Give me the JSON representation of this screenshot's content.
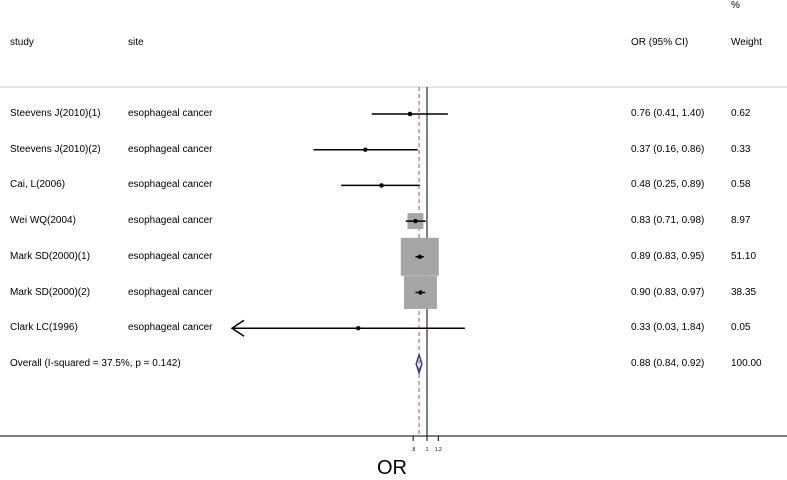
{
  "headers": {
    "study": "study",
    "site": "site",
    "or_ci": "OR (95% CI)",
    "weight_pct": "%",
    "weight": "Weight"
  },
  "chart_data": {
    "type": "forest",
    "xlabel": "OR",
    "x_ticks": [
      ".8",
      "1",
      "1.2"
    ],
    "null_value": 1,
    "overall_value": 0.88,
    "studies": [
      {
        "study": "Steevens J(2010)(1)",
        "site": "esophageal cancer",
        "or": 0.76,
        "lo": 0.41,
        "hi": 1.4,
        "ci_text": "0.76 (0.41, 1.40)",
        "weight": "0.62",
        "arrow_left": false
      },
      {
        "study": "Steevens J(2010)(2)",
        "site": "esophageal cancer",
        "or": 0.37,
        "lo": 0.16,
        "hi": 0.86,
        "ci_text": "0.37 (0.16, 0.86)",
        "weight": "0.33",
        "arrow_left": false
      },
      {
        "study": "Cai, L(2006)",
        "site": "esophageal cancer",
        "or": 0.48,
        "lo": 0.25,
        "hi": 0.89,
        "ci_text": "0.48 (0.25, 0.89)",
        "weight": "0.58",
        "arrow_left": false
      },
      {
        "study": "Wei WQ(2004)",
        "site": "esophageal cancer",
        "or": 0.83,
        "lo": 0.71,
        "hi": 0.98,
        "ci_text": "0.83 (0.71, 0.98)",
        "weight": "8.97",
        "arrow_left": false
      },
      {
        "study": "Mark SD(2000)(1)",
        "site": "esophageal cancer",
        "or": 0.89,
        "lo": 0.83,
        "hi": 0.95,
        "ci_text": "0.89 (0.83, 0.95)",
        "weight": "51.10",
        "arrow_left": false
      },
      {
        "study": "Mark SD(2000)(2)",
        "site": "esophageal cancer",
        "or": 0.9,
        "lo": 0.83,
        "hi": 0.97,
        "ci_text": "0.90 (0.83, 0.97)",
        "weight": "38.35",
        "arrow_left": false
      },
      {
        "study": "Clark LC(1996)",
        "site": "esophageal cancer",
        "or": 0.33,
        "lo": 0.03,
        "hi": 1.84,
        "ci_text": "0.33 (0.03, 1.84)",
        "weight": "0.05",
        "arrow_left": true
      }
    ],
    "overall": {
      "label": "Overall  (I-squared = 37.5%, p = 0.142)",
      "or": 0.88,
      "lo": 0.84,
      "hi": 0.92,
      "ci_text": "0.88 (0.84, 0.92)",
      "weight": "100.00"
    }
  }
}
